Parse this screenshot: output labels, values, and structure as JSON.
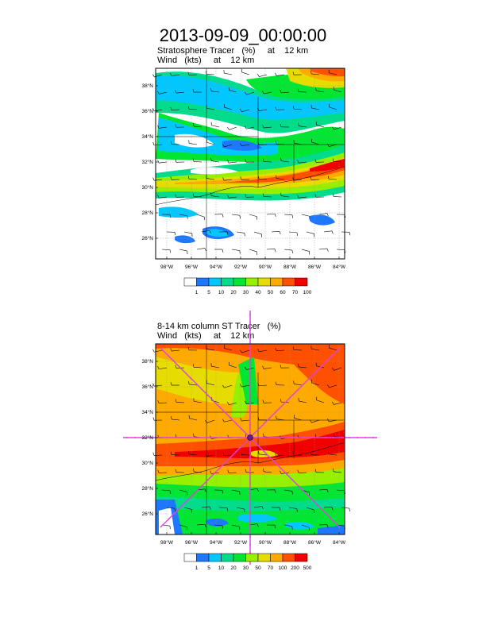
{
  "title": "2013-09-09_00:00:00",
  "panel1": {
    "line1": "Stratosphere Tracer   (%)     at    12 km",
    "line2": "Wind   (kts)     at    12 km",
    "lat_labels": [
      "38°N",
      "36°N",
      "34°N",
      "32°N",
      "30°N",
      "28°N",
      "26°N"
    ],
    "lon_labels": [
      "98°W",
      "96°W",
      "94°W",
      "92°W",
      "90°W",
      "88°W",
      "86°W",
      "84°W"
    ],
    "colorbar_labels": [
      "1",
      "5",
      "10",
      "20",
      "30",
      "40",
      "50",
      "60",
      "70",
      "100"
    ],
    "colorbar_colors": [
      "#ffffff",
      "#1e78ff",
      "#00c8ff",
      "#00dc8c",
      "#00e632",
      "#96f000",
      "#e6dc00",
      "#ffaa00",
      "#ff5000",
      "#f00000"
    ]
  },
  "panel2": {
    "line1": "8-14 km column ST Tracer   (%)",
    "line2": "Wind   (kts)     at    12 km",
    "lat_labels": [
      "38°N",
      "36°N",
      "34°N",
      "32°N",
      "30°N",
      "28°N",
      "26°N"
    ],
    "lon_labels": [
      "98°W",
      "96°W",
      "94°W",
      "92°W",
      "90°W",
      "88°W",
      "86°W",
      "84°W"
    ],
    "colorbar_labels": [
      "1",
      "5",
      "10",
      "20",
      "30",
      "50",
      "70",
      "100",
      "200",
      "500"
    ],
    "colorbar_colors": [
      "#ffffff",
      "#1e78ff",
      "#00c8ff",
      "#00dc8c",
      "#00e632",
      "#96f000",
      "#e6dc00",
      "#ffaa00",
      "#ff5000",
      "#f00000"
    ]
  },
  "colors": {
    "cross_section_line": "#e040e0",
    "marker": "#6a1a8a"
  }
}
